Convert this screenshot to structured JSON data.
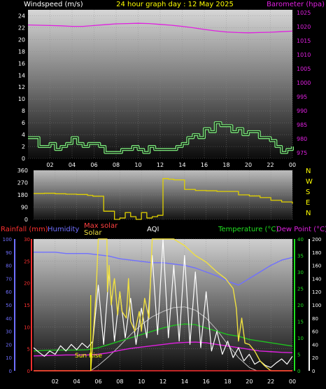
{
  "header": {
    "title": "24 hour graph day : 12 May 2025",
    "left_label": "Windspeed (m/s)",
    "right_label": "Barometer (hpa)"
  },
  "colors": {
    "background": "#000000",
    "wind_avg": "#0f0f0f",
    "wind_gust": "#7be87b",
    "barometer": "#e020e0",
    "direction": "#e0d000",
    "rain": "#ff3030",
    "humidity": "#7070ff",
    "solar": "#f0e040",
    "max_solar": "#c0c0c0",
    "aqi": "#ffffff",
    "temperature": "#20c020",
    "dew_point": "#e020e0",
    "sunrise": "#ffff00",
    "axis_left": "#ffffff",
    "axis_right": "#e020e0",
    "rain_axis": "#ff3030",
    "humidity_axis": "#7070ff",
    "temp_axis": "#20e020"
  },
  "chart_data": [
    {
      "type": "line",
      "title": "24 hour graph day : 12 May 2025",
      "xlabel": "",
      "ylabel": "Windspeed (m/s)",
      "y2label": "Barometer (hpa)",
      "x_ticks": [
        "02",
        "04",
        "06",
        "08",
        "10",
        "12",
        "14",
        "16",
        "18",
        "20",
        "22",
        "00"
      ],
      "xlim_hours": [
        0,
        24
      ],
      "ylim": [
        0,
        25
      ],
      "y_ticks": [
        0,
        2,
        4,
        6,
        8,
        10,
        12,
        14,
        16,
        18,
        20,
        22,
        24
      ],
      "y2lim": [
        973,
        1026
      ],
      "y2_ticks": [
        975,
        980,
        985,
        990,
        995,
        1000,
        1005,
        1010,
        1015,
        1020,
        1025
      ],
      "series": [
        {
          "name": "Windspeed (m/s)",
          "x": [
            0,
            0.5,
            1,
            1.5,
            2,
            2.5,
            3,
            3.5,
            4,
            4.5,
            5,
            5.5,
            6,
            6.5,
            7,
            7.5,
            8,
            8.5,
            9,
            9.5,
            10,
            10.5,
            11,
            11.5,
            12,
            12.5,
            13,
            13.5,
            14,
            14.5,
            15,
            15.5,
            16,
            16.5,
            17,
            17.5,
            18,
            18.5,
            19,
            19.5,
            20,
            20.5,
            21,
            21.5,
            22,
            22.5,
            23,
            23.5,
            24
          ],
          "values": [
            3.5,
            3.5,
            2,
            2,
            2.5,
            1.5,
            2,
            2.5,
            3.5,
            2.5,
            2,
            2.5,
            2.5,
            2,
            1,
            1,
            1,
            1.5,
            1.5,
            2,
            1.5,
            1,
            2,
            1.5,
            1.5,
            1.5,
            1.5,
            2,
            2.5,
            3.5,
            4,
            3.5,
            5,
            4.5,
            6,
            5.5,
            5.5,
            4.5,
            5,
            4,
            4.5,
            4.5,
            3.5,
            3.5,
            3,
            2,
            1,
            1.5,
            2
          ]
        },
        {
          "name": "Barometer (hpa)",
          "axis": "right",
          "x": [
            0,
            1,
            2,
            3,
            4,
            5,
            6,
            7,
            8,
            9,
            10,
            11,
            12,
            13,
            14,
            15,
            16,
            17,
            18,
            19,
            20,
            21,
            22,
            23,
            24
          ],
          "values": [
            1020.6,
            1020.5,
            1020.4,
            1020.3,
            1020.1,
            1020.1,
            1020.4,
            1020.7,
            1021.0,
            1021.1,
            1021.2,
            1021.1,
            1020.8,
            1020.5,
            1020.1,
            1019.6,
            1019.0,
            1018.5,
            1018.1,
            1017.9,
            1017.8,
            1017.9,
            1018.0,
            1018.2,
            1018.4
          ]
        }
      ]
    },
    {
      "type": "line",
      "xlabel": "",
      "ylabel": "",
      "ylim": [
        0,
        360
      ],
      "y_ticks": [
        0,
        90,
        180,
        270,
        360
      ],
      "y_tick_labels": [
        "0",
        "90",
        "180",
        "270",
        "360"
      ],
      "compass": [
        "N",
        "W",
        "S",
        "E",
        "N"
      ],
      "x_ticks": [
        "02",
        "04",
        "06",
        "08",
        "10",
        "12",
        "14",
        "16",
        "18",
        "20",
        "22",
        "00"
      ],
      "xlim_hours": [
        0,
        24
      ],
      "series": [
        {
          "name": "Wind direction",
          "x": [
            0,
            1,
            2,
            3,
            4,
            5,
            5.5,
            6,
            6.5,
            7,
            7.5,
            8,
            8.5,
            9,
            9.5,
            10,
            10.5,
            11,
            11.5,
            12,
            12.5,
            13,
            14,
            15,
            16,
            17,
            18,
            19,
            20,
            21,
            22,
            23,
            24
          ],
          "values": [
            190,
            192,
            188,
            185,
            183,
            176,
            170,
            170,
            60,
            60,
            0,
            10,
            50,
            20,
            0,
            50,
            10,
            20,
            30,
            300,
            295,
            290,
            220,
            212,
            210,
            205,
            205,
            180,
            172,
            160,
            140,
            128,
            115
          ]
        }
      ]
    },
    {
      "type": "line",
      "xlabel": "",
      "ylabel": "Rainfall (mm)",
      "ylim": [
        0,
        30
      ],
      "y_ticks": [
        0,
        5,
        10,
        15,
        20,
        25,
        30
      ],
      "humidity_ticks": [
        0,
        10,
        20,
        30,
        40,
        50,
        60,
        70,
        80,
        90,
        100
      ],
      "temp_ticks": [
        0,
        5,
        10,
        15,
        20,
        25,
        30,
        35,
        40
      ],
      "solar_ticks": [
        0,
        20,
        40,
        60,
        80,
        100,
        120,
        140,
        160,
        180,
        200
      ],
      "x_ticks": [
        "02",
        "04",
        "06",
        "08",
        "10",
        "12",
        "14",
        "16",
        "18",
        "20",
        "22",
        "00"
      ],
      "xlim_hours": [
        0,
        24
      ],
      "legend": [
        "Rainfall (mm)",
        "Humidity",
        "Max solar",
        "Solar",
        "AQI",
        "Temperature (°C)",
        "Dew Point (°C)"
      ],
      "annotations": [
        {
          "text": "Sun Rise",
          "x_hours": 5.3
        }
      ],
      "series": [
        {
          "name": "Humidity",
          "axis": "humidity",
          "x": [
            0,
            1,
            2,
            3,
            4,
            5,
            6,
            7,
            8,
            9,
            10,
            11,
            12,
            13,
            14,
            15,
            16,
            17,
            18,
            19,
            20,
            21,
            22,
            23,
            24
          ],
          "values": [
            90,
            90,
            90,
            89,
            89,
            89,
            88,
            87,
            85,
            84,
            83,
            82,
            82,
            81,
            80,
            78,
            75,
            72,
            68,
            65,
            70,
            75,
            80,
            84,
            86
          ]
        },
        {
          "name": "Temperature (°C)",
          "axis": "temp",
          "x": [
            0,
            1,
            2,
            3,
            4,
            5,
            6,
            7,
            8,
            9,
            10,
            11,
            12,
            13,
            14,
            15,
            16,
            17,
            18,
            19,
            20,
            21,
            22,
            23,
            24
          ],
          "values": [
            6.0,
            6.2,
            6.3,
            6.3,
            6.3,
            6.4,
            7.0,
            8.0,
            9.0,
            10.0,
            11.0,
            12.0,
            13.0,
            13.8,
            14.2,
            14.0,
            13.0,
            12.0,
            11.0,
            10.5,
            9.5,
            9.0,
            8.5,
            8.0,
            7.5
          ]
        },
        {
          "name": "Dew Point (°C)",
          "axis": "temp",
          "x": [
            0,
            1,
            2,
            3,
            4,
            5,
            6,
            7,
            8,
            9,
            10,
            11,
            12,
            13,
            14,
            15,
            16,
            17,
            18,
            19,
            20,
            21,
            22,
            23,
            24
          ],
          "values": [
            4.5,
            4.6,
            4.7,
            4.8,
            4.8,
            4.8,
            5.0,
            5.5,
            6.2,
            6.8,
            7.2,
            7.6,
            8.0,
            8.4,
            8.6,
            8.7,
            8.5,
            8.0,
            7.5,
            7.0,
            6.5,
            6.0,
            5.8,
            5.6,
            5.5
          ]
        },
        {
          "name": "Max solar",
          "axis": "solar",
          "x": [
            5.3,
            6,
            7,
            8,
            9,
            10,
            11,
            12,
            13,
            14,
            15,
            16,
            17,
            18,
            19,
            20,
            20.7
          ],
          "values": [
            0,
            8,
            22,
            38,
            55,
            70,
            82,
            90,
            96,
            97,
            92,
            80,
            62,
            40,
            20,
            5,
            0
          ]
        },
        {
          "name": "Solar",
          "axis": "solar",
          "x": [
            0,
            5.3,
            5.8,
            6,
            6.8,
            6.85,
            7.0,
            7.2,
            7.4,
            7.5,
            7.8,
            8.0,
            8.2,
            8.6,
            8.8,
            9.0,
            9.4,
            9.8,
            10.0,
            10.3,
            10.7,
            11.0,
            12.0,
            13.0,
            14.0,
            15.0,
            16.0,
            17.0,
            17.8,
            18.5,
            18.8,
            19.0,
            19.3,
            19.6,
            20.0,
            20.5,
            21.0,
            21.4,
            22.0,
            24.0
          ],
          "values": [
            0,
            0,
            120,
            200,
            200,
            120,
            160,
            100,
            130,
            140,
            85,
            120,
            90,
            80,
            140,
            75,
            60,
            90,
            60,
            110,
            80,
            200,
            200,
            200,
            190,
            175,
            165,
            150,
            140,
            125,
            95,
            45,
            80,
            42,
            40,
            30,
            15,
            8,
            0,
            0
          ]
        },
        {
          "name": "AQI",
          "axis": "solar",
          "x": [
            0,
            0.5,
            1,
            1.5,
            2,
            2.5,
            3,
            3.5,
            4,
            4.5,
            5,
            5.5,
            6,
            6.5,
            7,
            7.5,
            8,
            8.5,
            9,
            9.5,
            10,
            10.5,
            11,
            11.5,
            12,
            12.5,
            13,
            13.5,
            14,
            14.5,
            15,
            15.5,
            16,
            16.5,
            17,
            17.5,
            18,
            18.5,
            19,
            19.5,
            20,
            20.5,
            21,
            21.5,
            22,
            22.5,
            23,
            23.5,
            24
          ],
          "values": [
            35,
            28,
            22,
            30,
            25,
            38,
            30,
            40,
            32,
            42,
            35,
            45,
            130,
            40,
            150,
            45,
            120,
            50,
            110,
            40,
            95,
            50,
            175,
            55,
            200,
            50,
            160,
            45,
            175,
            40,
            150,
            35,
            120,
            30,
            60,
            25,
            45,
            20,
            35,
            15,
            25,
            10,
            15,
            8,
            5,
            12,
            18,
            10,
            22
          ]
        },
        {
          "name": "Rainfall (mm)",
          "axis": "rain",
          "x": [
            0,
            24
          ],
          "values": [
            0,
            0
          ]
        }
      ]
    }
  ]
}
